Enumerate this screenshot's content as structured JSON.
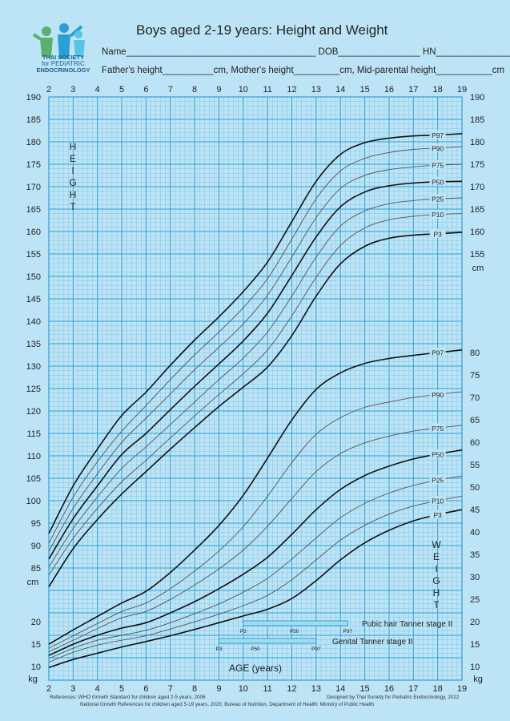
{
  "header": {
    "logo_text_line1": "THAI SOCIETY",
    "logo_text_line2": "for PEDIATRIC",
    "logo_text_line3": "ENDOCRINOLOGY",
    "title": "Boys aged 2-19 years: Height and Weight",
    "name_line": "Name_____________________________________ DOB________________ HN_________________",
    "parents_line": "Father's height__________cm, Mother's height_________cm, Mid-parental height___________cm"
  },
  "labels": {
    "height_letters": [
      "H",
      "E",
      "I",
      "G",
      "H",
      "T"
    ],
    "weight_letters": [
      "W",
      "E",
      "I",
      "G",
      "H",
      "T"
    ],
    "cm_left": "cm",
    "cm_right": "cm",
    "kg_left": "kg",
    "kg_right": "kg",
    "age_label": "AGE (years)",
    "pubic_label": "Pubic hair Tanner stage II",
    "genital_label": "Genital Tanner stage II",
    "tanner_p3": "P3",
    "tanner_p50": "P50",
    "tanner_p97": "P97"
  },
  "footer": {
    "ref1": "References:  WHO Growth Standard for children aged 2-5 years, 2006",
    "ref2": "National Growth References for children aged 5-19 years, 2020, Bureau of Nutrition, Department of Health: Ministry of Public Health",
    "designed": "Designed by Thai Society for Pediatric Endocrinology, 2022"
  },
  "colors": {
    "background": "#bde4f6",
    "grid_minor": "#7fc5e6",
    "grid_major": "#2f9fd3",
    "curve_bold": "#111111",
    "curve_thin": "#555555",
    "tanner_bar": "#9fdcf2"
  },
  "chart_data": {
    "type": "line",
    "xlabel": "AGE (years)",
    "x_ticks": [
      2,
      3,
      4,
      5,
      6,
      7,
      8,
      9,
      10,
      11,
      12,
      13,
      14,
      15,
      16,
      17,
      18,
      19
    ],
    "height_axis": {
      "unit": "cm",
      "range": [
        80,
        190
      ],
      "ticks": [
        85,
        90,
        95,
        100,
        105,
        110,
        115,
        120,
        125,
        130,
        135,
        140,
        145,
        150,
        155,
        160,
        165,
        170,
        175,
        180,
        185,
        190
      ]
    },
    "weight_axis_left": {
      "unit": "kg",
      "range": [
        7,
        35
      ],
      "ticks": [
        10,
        15,
        20
      ]
    },
    "weight_axis_right": {
      "unit": "kg",
      "range": [
        7,
        80
      ],
      "ticks": [
        10,
        15,
        20,
        25,
        30,
        35,
        40,
        45,
        50,
        55,
        60,
        65,
        70,
        75,
        80
      ]
    },
    "height_axis_right_ticks": [
      155,
      160,
      165,
      170,
      175,
      180,
      185,
      190
    ],
    "height_series": [
      {
        "name": "P97",
        "bold": true,
        "x": [
          2,
          3,
          4,
          5,
          6,
          7,
          8,
          9,
          10,
          11,
          12,
          13,
          14,
          15,
          16,
          17,
          18,
          19
        ],
        "y": [
          92.7,
          103.3,
          111.5,
          119.0,
          124.2,
          130.2,
          135.8,
          141.0,
          146.6,
          153.2,
          162.2,
          171.2,
          177.2,
          179.8,
          180.8,
          181.3,
          181.5,
          181.8
        ]
      },
      {
        "name": "P90",
        "bold": false,
        "x": [
          2,
          3,
          4,
          5,
          6,
          7,
          8,
          9,
          10,
          11,
          12,
          13,
          14,
          15,
          16,
          17,
          18,
          19
        ],
        "y": [
          90.5,
          100.8,
          108.7,
          115.5,
          121.2,
          127.0,
          132.5,
          137.6,
          143.0,
          149.5,
          158.3,
          167.3,
          173.5,
          176.3,
          177.6,
          178.3,
          178.6,
          178.9
        ]
      },
      {
        "name": "P75",
        "bold": false,
        "x": [
          2,
          3,
          4,
          5,
          6,
          7,
          8,
          9,
          10,
          11,
          12,
          13,
          14,
          15,
          16,
          17,
          18,
          19
        ],
        "y": [
          88.7,
          98.3,
          106.0,
          113.0,
          118.4,
          123.8,
          129.2,
          134.2,
          139.4,
          145.8,
          154.3,
          163.1,
          169.6,
          172.5,
          173.8,
          174.4,
          174.8,
          175.0
        ]
      },
      {
        "name": "P50",
        "bold": true,
        "x": [
          2,
          3,
          4,
          5,
          6,
          7,
          8,
          9,
          10,
          11,
          12,
          13,
          14,
          15,
          16,
          17,
          18,
          19
        ],
        "y": [
          87.0,
          96.0,
          103.3,
          110.3,
          115.0,
          120.3,
          125.5,
          130.5,
          135.6,
          141.8,
          150.2,
          158.8,
          165.5,
          168.8,
          170.2,
          170.8,
          171.1,
          171.2
        ]
      },
      {
        "name": "P25",
        "bold": false,
        "x": [
          2,
          3,
          4,
          5,
          6,
          7,
          8,
          9,
          10,
          11,
          12,
          13,
          14,
          15,
          16,
          17,
          18,
          19
        ],
        "y": [
          85.2,
          93.8,
          100.8,
          107.2,
          112.0,
          117.0,
          122.0,
          127.0,
          131.8,
          137.6,
          145.6,
          154.3,
          161.2,
          164.6,
          166.2,
          166.9,
          167.3,
          167.5
        ]
      },
      {
        "name": "P10",
        "bold": false,
        "x": [
          2,
          3,
          4,
          5,
          6,
          7,
          8,
          9,
          10,
          11,
          12,
          13,
          14,
          15,
          16,
          17,
          18,
          19
        ],
        "y": [
          83.4,
          91.6,
          98.3,
          104.2,
          109.0,
          114.0,
          118.9,
          123.7,
          128.3,
          133.6,
          141.2,
          149.8,
          156.9,
          160.8,
          162.6,
          163.4,
          163.8,
          164.0
        ]
      },
      {
        "name": "P3",
        "bold": true,
        "x": [
          2,
          3,
          4,
          5,
          6,
          7,
          8,
          9,
          10,
          11,
          12,
          13,
          14,
          15,
          16,
          17,
          18,
          19
        ],
        "y": [
          80.8,
          89.3,
          95.8,
          101.5,
          106.5,
          111.5,
          116.3,
          121.0,
          125.3,
          129.8,
          136.8,
          145.6,
          152.8,
          156.7,
          158.5,
          159.2,
          159.5,
          159.8
        ]
      }
    ],
    "weight_series": [
      {
        "name": "P97",
        "bold": true,
        "x": [
          2,
          3,
          4,
          5,
          6,
          7,
          8,
          9,
          10,
          11,
          12,
          13,
          14,
          15,
          16,
          17,
          18,
          19
        ],
        "y": [
          15.0,
          18.2,
          21.2,
          24.2,
          26.8,
          31.0,
          36.0,
          41.5,
          48.2,
          56.5,
          65.0,
          71.8,
          75.5,
          77.6,
          78.7,
          79.4,
          80.0,
          80.6
        ]
      },
      {
        "name": "P90",
        "bold": false,
        "x": [
          2,
          3,
          4,
          5,
          6,
          7,
          8,
          9,
          10,
          11,
          12,
          13,
          14,
          15,
          16,
          17,
          18,
          19
        ],
        "y": [
          14.1,
          16.9,
          19.6,
          22.3,
          24.2,
          27.4,
          31.3,
          35.8,
          41.2,
          48.0,
          55.5,
          61.8,
          65.5,
          67.8,
          69.0,
          70.0,
          70.7,
          71.3
        ]
      },
      {
        "name": "P75",
        "bold": false,
        "x": [
          2,
          3,
          4,
          5,
          6,
          7,
          8,
          9,
          10,
          11,
          12,
          13,
          14,
          15,
          16,
          17,
          18,
          19
        ],
        "y": [
          13.3,
          15.9,
          18.5,
          20.9,
          22.3,
          25.0,
          28.2,
          31.8,
          36.0,
          41.3,
          47.5,
          53.5,
          57.5,
          59.9,
          61.4,
          62.5,
          63.2,
          63.8
        ]
      },
      {
        "name": "P50",
        "bold": true,
        "x": [
          2,
          3,
          4,
          5,
          6,
          7,
          8,
          9,
          10,
          11,
          12,
          13,
          14,
          15,
          16,
          17,
          18,
          19
        ],
        "y": [
          12.5,
          15.0,
          17.0,
          18.6,
          19.8,
          22.0,
          24.5,
          27.4,
          30.6,
          34.4,
          39.5,
          45.0,
          49.5,
          52.6,
          54.7,
          56.3,
          57.4,
          58.3
        ]
      },
      {
        "name": "P25",
        "bold": false,
        "x": [
          2,
          3,
          4,
          5,
          6,
          7,
          8,
          9,
          10,
          11,
          12,
          13,
          14,
          15,
          16,
          17,
          18,
          19
        ],
        "y": [
          11.8,
          14.1,
          15.9,
          17.0,
          18.1,
          19.8,
          21.8,
          24.0,
          26.6,
          29.7,
          34.0,
          38.7,
          43.2,
          46.4,
          48.7,
          50.4,
          51.6,
          52.5
        ]
      },
      {
        "name": "P10",
        "bold": false,
        "x": [
          2,
          3,
          4,
          5,
          6,
          7,
          8,
          9,
          10,
          11,
          12,
          13,
          14,
          15,
          16,
          17,
          18,
          19
        ],
        "y": [
          11.0,
          13.2,
          14.8,
          15.9,
          16.9,
          18.4,
          20.0,
          21.7,
          23.6,
          25.9,
          29.4,
          33.8,
          38.2,
          41.5,
          44.0,
          45.8,
          47.0,
          48.0
        ]
      },
      {
        "name": "P3",
        "bold": true,
        "x": [
          2,
          3,
          4,
          5,
          6,
          7,
          8,
          9,
          10,
          11,
          12,
          13,
          14,
          15,
          16,
          17,
          18,
          19
        ],
        "y": [
          9.8,
          11.6,
          13.0,
          14.4,
          15.6,
          16.9,
          18.3,
          19.8,
          21.3,
          22.8,
          25.2,
          29.2,
          33.8,
          37.6,
          40.4,
          42.5,
          43.9,
          45.0
        ]
      }
    ],
    "tanner_pubic_hair_stage2": {
      "p3": 10.0,
      "p50": 12.1,
      "p97": 14.3
    },
    "tanner_genital_stage2": {
      "p3": 9.0,
      "p50": 10.5,
      "p97": 13.0
    }
  }
}
